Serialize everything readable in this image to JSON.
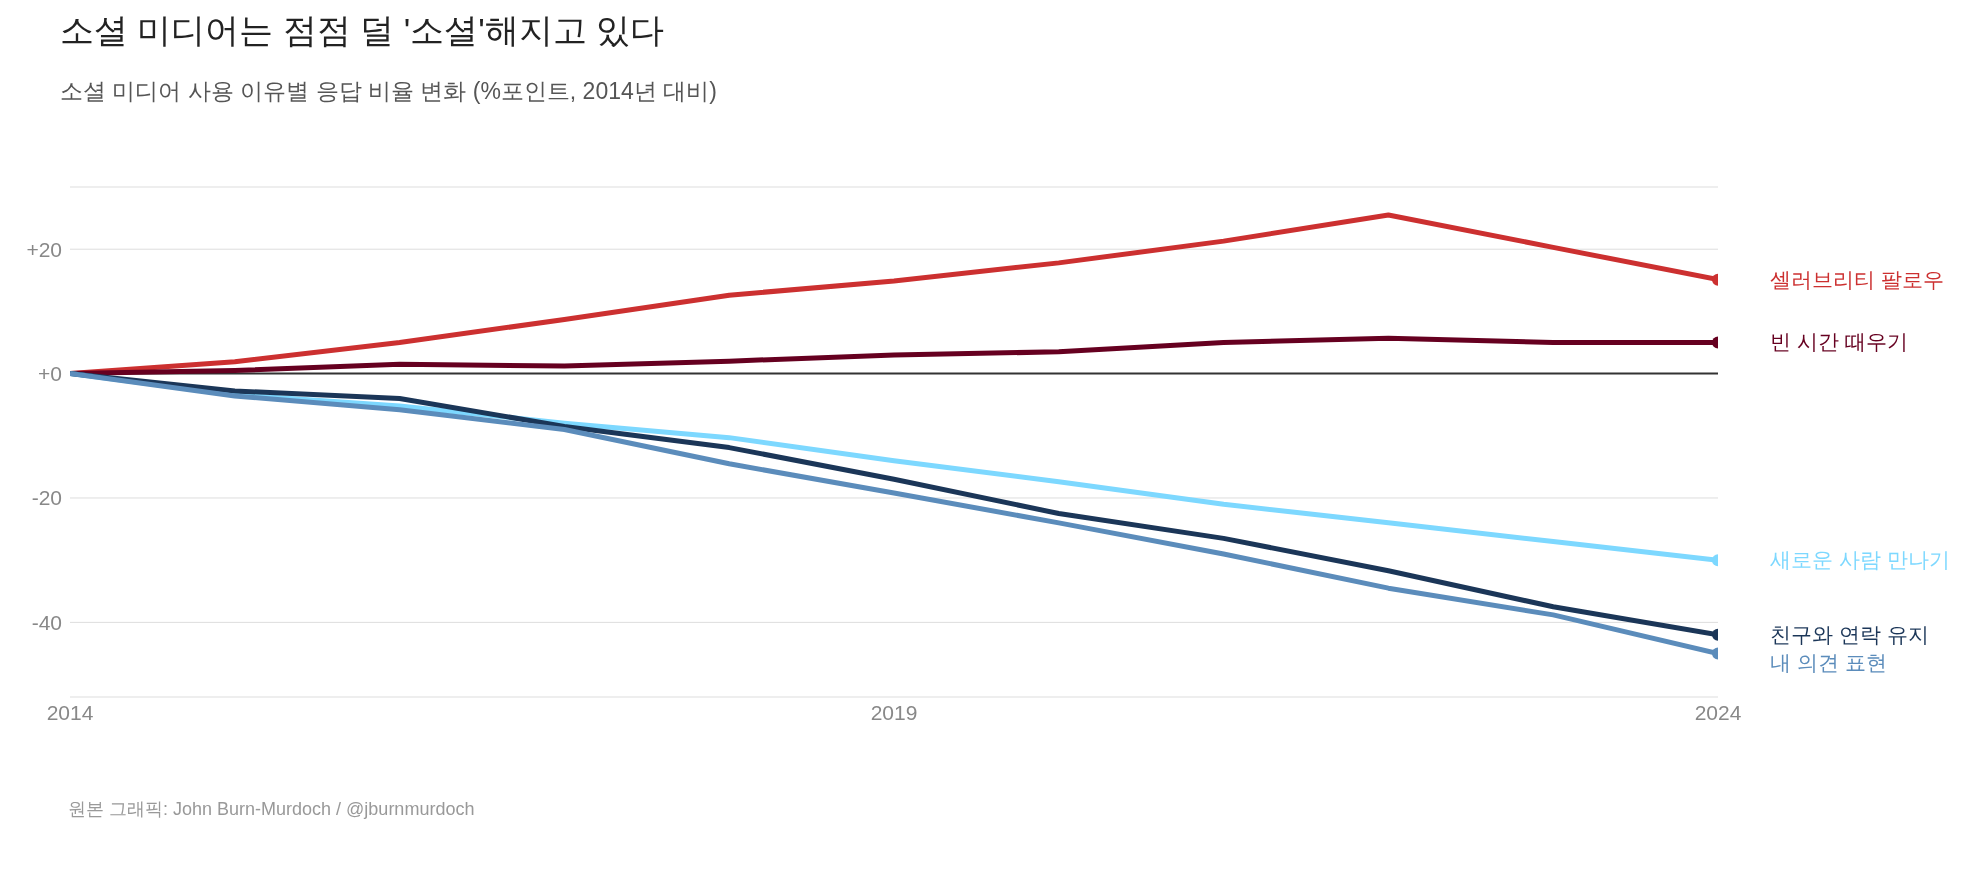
{
  "chart_data": {
    "type": "line",
    "title": "소셜 미디어는 점점 덜 '소셜'해지고 있다",
    "subtitle": "소셜 미디어 사용 이유별 응답 비율 변화 (%포인트, 2014년 대비)",
    "x": [
      2014,
      2015,
      2016,
      2017,
      2018,
      2019,
      2020,
      2021,
      2022,
      2023,
      2024
    ],
    "series": [
      {
        "name": "셀러브리티 팔로우",
        "color": "#cc3030",
        "values": [
          0,
          1.9,
          5,
          8.7,
          12.6,
          14.9,
          17.8,
          21.3,
          25.5,
          20.3,
          15.1
        ]
      },
      {
        "name": "빈 시간 때우기",
        "color": "#660020",
        "values": [
          0,
          0.5,
          1.5,
          1.2,
          2,
          3,
          3.5,
          5,
          5.7,
          5,
          5
        ]
      },
      {
        "name": "새로운 사람 만나기",
        "color": "#7dd8ff",
        "values": [
          0,
          -3.4,
          -5.2,
          -8,
          -10.3,
          -14,
          -17.4,
          -21,
          -24,
          -27,
          -30
        ]
      },
      {
        "name": "친구와 연락 유지",
        "color": "#1b3658",
        "values": [
          0,
          -2.8,
          -4,
          -8.5,
          -11.9,
          -17,
          -22.5,
          -26.5,
          -31.7,
          -37.5,
          -42
        ]
      },
      {
        "name": "내 의견 표현",
        "color": "#5b8cbb",
        "values": [
          0,
          -3.6,
          -5.8,
          -9,
          -14.5,
          -19.2,
          -24,
          -29,
          -34.5,
          -38.8,
          -45
        ]
      }
    ],
    "xlim": [
      2014,
      2024
    ],
    "xticks": [
      2014,
      2019,
      2024
    ],
    "ylim": [
      -52,
      30
    ],
    "yticks": [
      {
        "value": 20,
        "label": "+20"
      },
      {
        "value": 0,
        "label": "+0"
      },
      -20,
      -40
    ],
    "grid": "y",
    "ref_lines": [
      {
        "axis": "y",
        "value": 0,
        "color": "#333333"
      }
    ],
    "annotations": [
      "원본 그래픽: John Burn-Murdoch / @jburnmurdoch"
    ]
  }
}
